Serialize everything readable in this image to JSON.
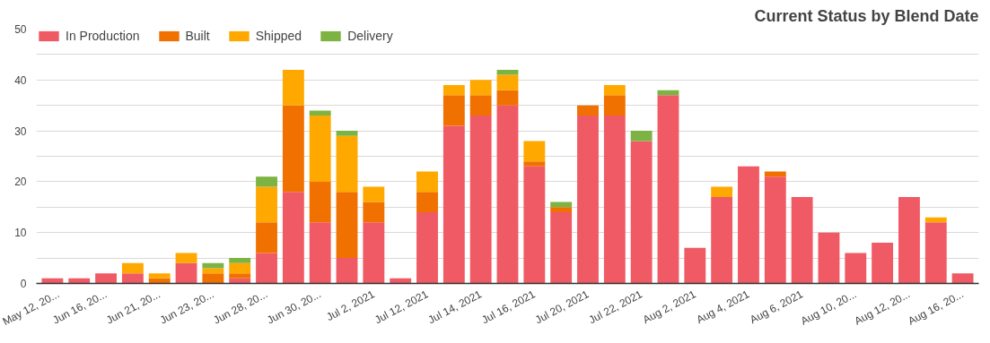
{
  "chart_data": {
    "type": "bar",
    "title": "Current Status by Blend Date",
    "stacked": true,
    "legend": "top",
    "grid": "y",
    "categories": [
      "May 12, 20...",
      null,
      "Jun 16, 20...",
      null,
      "Jun 21, 20...",
      null,
      "Jun 23, 20...",
      null,
      "Jun 28, 20...",
      null,
      "Jun 30, 20...",
      null,
      "Jul 2, 2021",
      null,
      "Jul 12, 2021",
      null,
      "Jul 14, 2021",
      null,
      "Jul 16, 2021",
      null,
      "Jul 20, 2021",
      null,
      "Jul 22, 2021",
      null,
      "Aug 2, 2021",
      null,
      "Aug 4, 2021",
      null,
      "Aug 6, 2021",
      null,
      "Aug 10, 20...",
      null,
      "Aug 12, 20...",
      null,
      "Aug 16, 20..."
    ],
    "ylim": [
      0,
      50
    ],
    "yticks": [
      0,
      {
        "value": 5,
        "label": null
      },
      10,
      {
        "value": 15,
        "label": null
      },
      20,
      {
        "value": 25,
        "label": null
      },
      30,
      {
        "value": 35,
        "label": null
      },
      40,
      {
        "value": 45,
        "label": null
      },
      50
    ],
    "series": [
      {
        "name": "In Production",
        "color": "#f05a64",
        "values": [
          1,
          1,
          2,
          2,
          0,
          4,
          0,
          1,
          6,
          18,
          12,
          5,
          12,
          1,
          14,
          31,
          33,
          35,
          23,
          14,
          33,
          33,
          28,
          37,
          7,
          17,
          23,
          21,
          17,
          10,
          6,
          8,
          17,
          12,
          2
        ]
      },
      {
        "name": "Built",
        "color": "#f07000",
        "values": [
          0,
          0,
          0,
          0,
          1,
          0,
          2,
          1,
          6,
          17,
          8,
          13,
          4,
          0,
          4,
          6,
          4,
          3,
          1,
          1,
          2,
          4,
          0,
          0,
          0,
          0,
          0,
          1,
          0,
          0,
          0,
          0,
          0,
          0,
          0
        ]
      },
      {
        "name": "Shipped",
        "color": "#ffa800",
        "values": [
          0,
          0,
          0,
          2,
          1,
          2,
          1,
          2,
          7,
          7,
          13,
          11,
          3,
          0,
          4,
          2,
          3,
          3,
          4,
          0,
          0,
          2,
          0,
          0,
          0,
          2,
          0,
          0,
          0,
          0,
          0,
          0,
          0,
          1,
          0
        ]
      },
      {
        "name": "Delivery",
        "color": "#7cb342",
        "values": [
          0,
          0,
          0,
          0,
          0,
          0,
          1,
          1,
          2,
          0,
          1,
          1,
          0,
          0,
          0,
          0,
          0,
          1,
          0,
          1,
          0,
          0,
          2,
          1,
          0,
          0,
          0,
          0,
          0,
          0,
          0,
          0,
          0,
          0,
          0
        ]
      }
    ]
  }
}
